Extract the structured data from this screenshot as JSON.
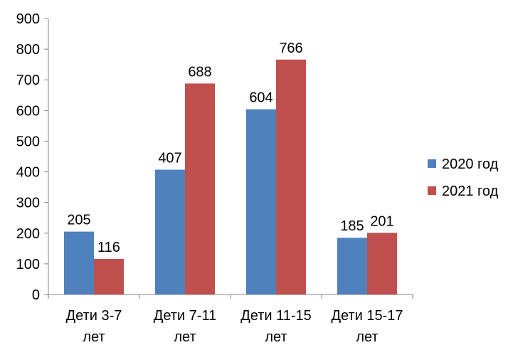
{
  "chart_data": {
    "type": "bar",
    "title": "",
    "xlabel": "",
    "ylabel": "",
    "categories": [
      [
        "Дети 3-7",
        "лет"
      ],
      [
        "Дети 7-11",
        "лет"
      ],
      [
        "Дети 11-15",
        "лет"
      ],
      [
        "Дети 15-17",
        "лет"
      ]
    ],
    "series": [
      {
        "name": "2020 год",
        "color": "#4f81bd",
        "values": [
          205,
          407,
          604,
          185
        ]
      },
      {
        "name": "2021 год",
        "color": "#c0504d",
        "values": [
          116,
          688,
          766,
          201
        ]
      }
    ],
    "ylim": [
      0,
      900
    ],
    "yticks": [
      0,
      100,
      200,
      300,
      400,
      500,
      600,
      700,
      800,
      900
    ],
    "grid": false,
    "legend_position": "right",
    "data_labels": true
  }
}
